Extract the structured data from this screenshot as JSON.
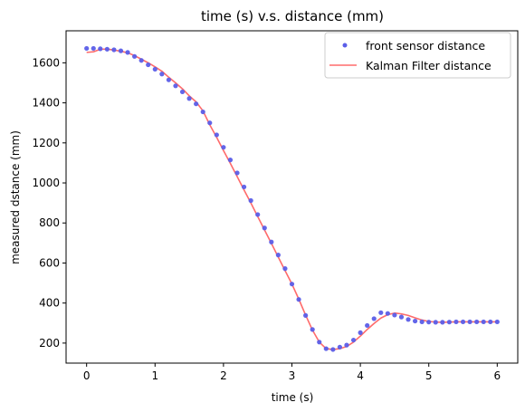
{
  "chart_data": {
    "type": "line",
    "title": "time (s) v.s. distance (mm)",
    "xlabel": "time (s)",
    "ylabel": "measured dstance (mm)",
    "xlim": [
      -0.3,
      6.3
    ],
    "ylim": [
      100,
      1760
    ],
    "xticks": [
      0,
      1,
      2,
      3,
      4,
      5,
      6
    ],
    "yticks": [
      200,
      400,
      600,
      800,
      1000,
      1200,
      1400,
      1600
    ],
    "xtick_labels": [
      "0",
      "1",
      "2",
      "3",
      "4",
      "5",
      "6"
    ],
    "ytick_labels": [
      "200",
      "400",
      "600",
      "800",
      "1000",
      "1200",
      "1400",
      "1600"
    ],
    "grid": false,
    "legend_position": "upper right",
    "series": [
      {
        "name": "front sensor distance",
        "style": "scatter",
        "color": "#5b5ee8",
        "x": [
          0.0,
          0.1,
          0.2,
          0.3,
          0.4,
          0.5,
          0.6,
          0.7,
          0.8,
          0.9,
          1.0,
          1.1,
          1.2,
          1.3,
          1.4,
          1.5,
          1.6,
          1.7,
          1.8,
          1.9,
          2.0,
          2.1,
          2.2,
          2.3,
          2.4,
          2.5,
          2.6,
          2.7,
          2.8,
          2.9,
          3.0,
          3.1,
          3.2,
          3.3,
          3.4,
          3.5,
          3.6,
          3.7,
          3.8,
          3.9,
          4.0,
          4.1,
          4.2,
          4.3,
          4.4,
          4.5,
          4.6,
          4.7,
          4.8,
          4.9,
          5.0,
          5.1,
          5.2,
          5.3,
          5.4,
          5.5,
          5.6,
          5.7,
          5.8,
          5.9,
          6.0
        ],
        "y": [
          1672,
          1672,
          1670,
          1668,
          1665,
          1660,
          1652,
          1632,
          1612,
          1590,
          1568,
          1544,
          1515,
          1485,
          1455,
          1422,
          1395,
          1355,
          1300,
          1240,
          1178,
          1115,
          1050,
          980,
          912,
          842,
          775,
          705,
          640,
          572,
          495,
          418,
          338,
          268,
          205,
          172,
          168,
          180,
          190,
          215,
          252,
          288,
          322,
          352,
          348,
          340,
          330,
          318,
          310,
          306,
          305,
          304,
          304,
          305,
          306,
          306,
          306,
          306,
          306,
          306,
          306
        ]
      },
      {
        "name": "Kalman Filter distance",
        "style": "line",
        "color": "#ff6b6b",
        "x": [
          0.0,
          0.1,
          0.2,
          0.3,
          0.4,
          0.5,
          0.6,
          0.7,
          0.8,
          0.9,
          1.0,
          1.1,
          1.2,
          1.3,
          1.4,
          1.5,
          1.6,
          1.7,
          1.8,
          1.9,
          2.0,
          2.1,
          2.2,
          2.3,
          2.4,
          2.5,
          2.6,
          2.7,
          2.8,
          2.9,
          3.0,
          3.1,
          3.2,
          3.3,
          3.4,
          3.5,
          3.6,
          3.7,
          3.8,
          3.9,
          4.0,
          4.1,
          4.2,
          4.3,
          4.4,
          4.5,
          4.6,
          4.7,
          4.8,
          4.9,
          5.0,
          5.1,
          5.2,
          5.3,
          5.4,
          5.5,
          5.6,
          5.7,
          5.8,
          5.9,
          6.0
        ],
        "y": [
          1652,
          1655,
          1668,
          1668,
          1664,
          1658,
          1650,
          1636,
          1618,
          1600,
          1580,
          1558,
          1528,
          1500,
          1470,
          1435,
          1405,
          1360,
          1290,
          1228,
          1162,
          1098,
          1032,
          965,
          900,
          832,
          765,
          698,
          630,
          562,
          495,
          420,
          340,
          265,
          205,
          172,
          168,
          172,
          183,
          205,
          235,
          268,
          298,
          325,
          342,
          350,
          346,
          338,
          326,
          315,
          308,
          305,
          304,
          305,
          306,
          306,
          306,
          306,
          306,
          306,
          306
        ]
      }
    ]
  }
}
